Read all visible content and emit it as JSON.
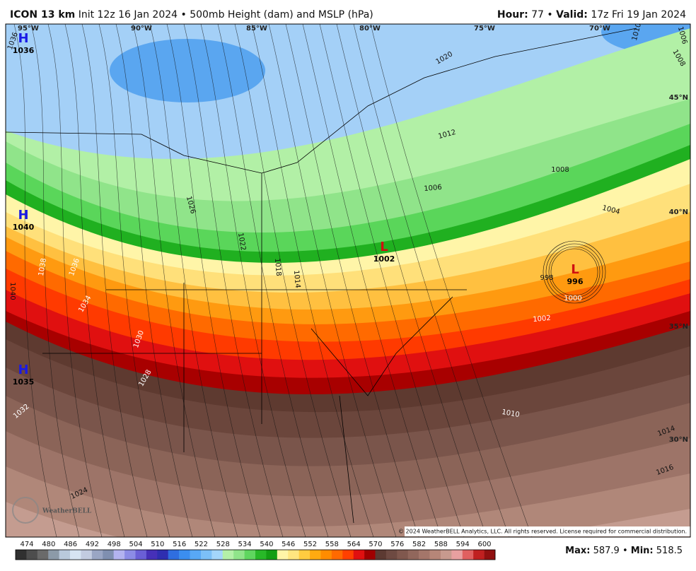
{
  "header": {
    "model": "ICON 13 km",
    "description": "Init 12z 16 Jan 2024 • 500mb Height (dam) and MSLP (hPa)",
    "separator": "•",
    "hour_label": "Hour:",
    "hour": 77,
    "valid_label": "Valid:",
    "valid": "17z Fri 19 Jan 2024"
  },
  "map": {
    "longitude_labels": [
      "95°W",
      "90°W",
      "85°W",
      "80°W",
      "75°W",
      "70°W"
    ],
    "latitude_labels": [
      "45°N",
      "40°N",
      "35°N",
      "30°N"
    ],
    "pressure_centers": [
      {
        "letter": "H",
        "value": 1036
      },
      {
        "letter": "H",
        "value": 1040
      },
      {
        "letter": "H",
        "value": 1035
      },
      {
        "letter": "L",
        "value": 1002
      },
      {
        "letter": "L",
        "value": 996
      }
    ],
    "isobar_labels": [
      1036,
      1020,
      1012,
      1008,
      1006,
      1004,
      1026,
      1022,
      1018,
      1014,
      1038,
      1036,
      1034,
      1040,
      1030,
      1028,
      1032,
      1024,
      998,
      1000,
      1002,
      1010,
      1014,
      1016,
      1010,
      1006,
      1008
    ],
    "copyright": "© 2024 WeatherBELL Analytics, LLC. All rights reserved. License required for commercial distribution.",
    "logo": "WeatherBELL"
  },
  "colorbar": {
    "ticks": [
      474,
      480,
      486,
      492,
      498,
      504,
      510,
      516,
      522,
      528,
      534,
      540,
      546,
      552,
      558,
      564,
      570,
      576,
      582,
      588,
      594,
      600
    ],
    "colors": [
      "#303030",
      "#4d4d4d",
      "#6a6a6a",
      "#8c9aa8",
      "#b9c9dc",
      "#d6e4f2",
      "#c2cbe0",
      "#9aa6c4",
      "#7f8fb0",
      "#b3b3f0",
      "#8c8ce6",
      "#6a5fd6",
      "#4630b8",
      "#2e2eb0",
      "#2f6ee0",
      "#3b8ef0",
      "#58a8f5",
      "#7cc0f7",
      "#a4d6fb",
      "#b4f0a8",
      "#90e48a",
      "#5fd65f",
      "#28b828",
      "#139e13",
      "#fff5a8",
      "#ffe680",
      "#ffcc40",
      "#ffaa10",
      "#ff8c00",
      "#ff6a00",
      "#ff4000",
      "#e01010",
      "#a00000",
      "#5c3a32",
      "#6e4a42",
      "#80584e",
      "#91675c",
      "#a4766a",
      "#b68678",
      "#c79a8e",
      "#e8a0a0",
      "#e06060",
      "#c02020",
      "#901010"
    ]
  },
  "stats": {
    "max_label": "Max:",
    "max": 587.9,
    "min_label": "Min:",
    "min": 518.5
  }
}
